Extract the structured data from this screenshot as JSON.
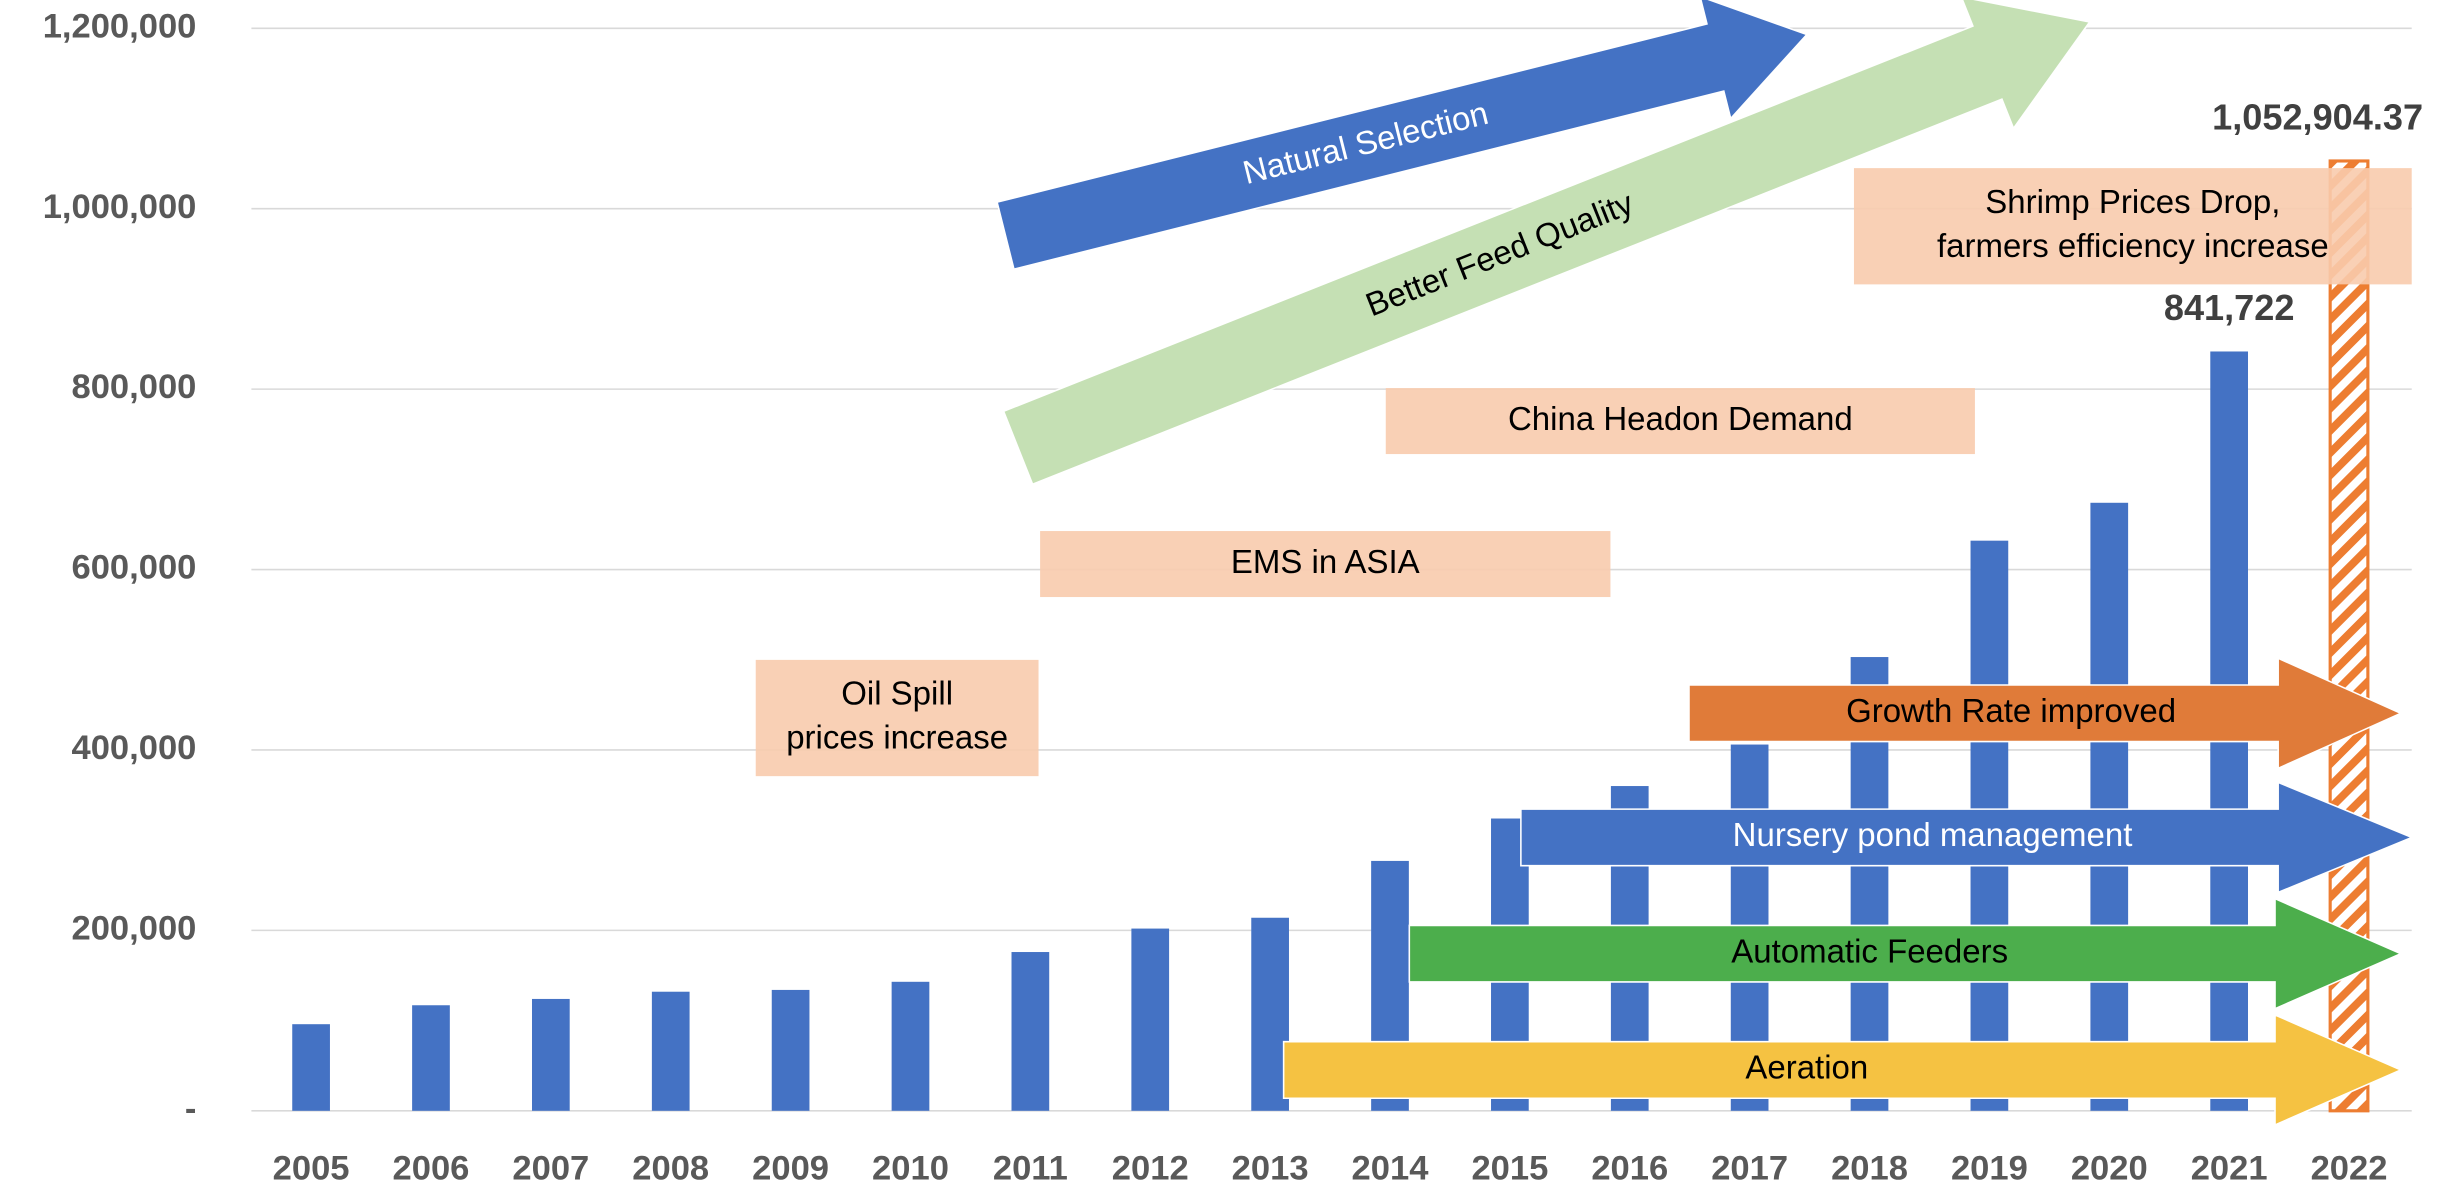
{
  "chart_data": {
    "type": "bar",
    "categories": [
      "2005",
      "2006",
      "2007",
      "2008",
      "2009",
      "2010",
      "2011",
      "2012",
      "2013",
      "2014",
      "2015",
      "2016",
      "2017",
      "2018",
      "2019",
      "2020",
      "2021",
      "2022"
    ],
    "values": [
      96000,
      117000,
      124000,
      132000,
      134000,
      143000,
      176000,
      202000,
      214000,
      277000,
      324000,
      360000,
      406000,
      503000,
      632000,
      674000,
      841722,
      1052904.37
    ],
    "value_labels": [
      null,
      null,
      null,
      null,
      null,
      null,
      null,
      null,
      null,
      null,
      null,
      null,
      null,
      null,
      null,
      null,
      "841,722",
      "1,052,904.37"
    ],
    "color": "#4472c4",
    "hatched": "2022",
    "hatch_color": "#ed7d31",
    "ylim": [
      0,
      1200000
    ],
    "yticks": [
      {
        "value": 0,
        "label": "-"
      },
      {
        "value": 200000,
        "label": "200,000"
      },
      {
        "value": 400000,
        "label": "400,000"
      },
      {
        "value": 600000,
        "label": "600,000"
      },
      {
        "value": 800000,
        "label": "800,000"
      },
      {
        "value": 1000000,
        "label": "1,000,000"
      },
      {
        "value": 1200000,
        "label": "1,200,000"
      }
    ],
    "grid": true,
    "annotations": [
      {
        "kind": "arrow",
        "lines": [
          "Natural Selection"
        ],
        "color": "#4472c4",
        "text_color": "#ffffff"
      },
      {
        "kind": "arrow",
        "lines": [
          "Better Feed Quality"
        ],
        "color": "#c5e0b4",
        "text_color": "#000000"
      },
      {
        "kind": "box",
        "lines": [
          "Shrimp Prices Drop,",
          "farmers efficiency increase"
        ],
        "color": "#f8cbad",
        "text_color": "#000000"
      },
      {
        "kind": "box",
        "lines": [
          "China Headon Demand"
        ],
        "color": "#f8cbad",
        "text_color": "#000000"
      },
      {
        "kind": "box",
        "lines": [
          "EMS in ASIA"
        ],
        "color": "#f8cbad",
        "text_color": "#000000"
      },
      {
        "kind": "box",
        "lines": [
          "Oil Spill",
          "prices increase"
        ],
        "color": "#f8cbad",
        "text_color": "#000000"
      },
      {
        "kind": "arrow",
        "lines": [
          "Growth Rate improved"
        ],
        "color": "#e07b39",
        "text_color": "#000000"
      },
      {
        "kind": "arrow",
        "lines": [
          "Nursery pond management"
        ],
        "color": "#4472c4",
        "text_color": "#ffffff"
      },
      {
        "kind": "arrow",
        "lines": [
          "Automatic Feeders"
        ],
        "color": "#4cae4c",
        "text_color": "#000000"
      },
      {
        "kind": "arrow",
        "lines": [
          "Aeration"
        ],
        "color": "#f5c242",
        "text_color": "#000000"
      }
    ]
  }
}
